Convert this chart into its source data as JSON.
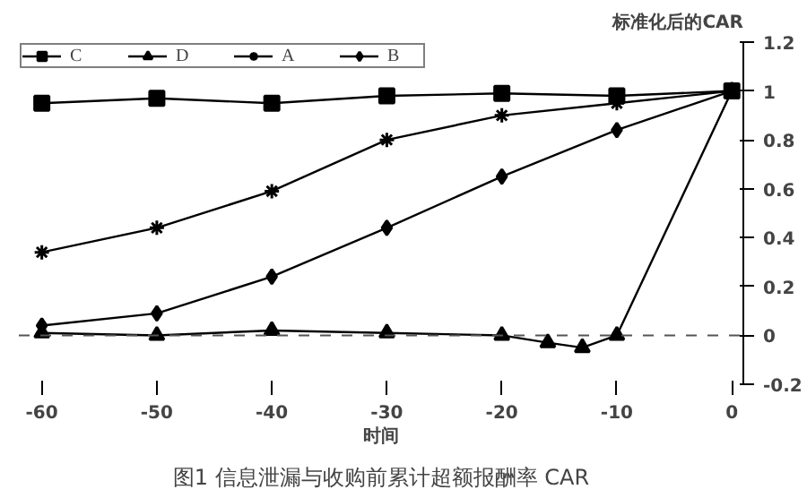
{
  "chart_data": {
    "type": "line",
    "title": "图1 信息泄漏与收购前累计超额报酬率 CAR",
    "xlabel": "时间",
    "ylabel": "标准化后的CAR",
    "x": [
      -60,
      -50,
      -40,
      -30,
      -20,
      -10,
      0
    ],
    "series": [
      {
        "name": "C",
        "color": "#000000",
        "marker": "square",
        "values": [
          0.95,
          0.97,
          0.95,
          0.98,
          0.99,
          0.98,
          1
        ]
      },
      {
        "name": "D",
        "color": "#000000",
        "marker": "triangle",
        "x": [
          -60,
          -50,
          -40,
          -30,
          -20,
          -16,
          -13,
          -10,
          0
        ],
        "values": [
          0.01,
          0.0,
          0.02,
          0.01,
          0.0,
          -0.03,
          -0.05,
          0.0,
          1
        ]
      },
      {
        "name": "A",
        "color": "#000000",
        "marker": "cross",
        "values": [
          0.34,
          0.44,
          0.59,
          0.8,
          0.9,
          0.95,
          1
        ]
      },
      {
        "name": "B",
        "color": "#000000",
        "marker": "diamond",
        "values": [
          0.04,
          0.09,
          0.24,
          0.44,
          0.65,
          0.84,
          1
        ]
      }
    ],
    "xlim": [
      -62,
      1
    ],
    "ylim": [
      -0.2,
      1.2
    ],
    "xticks": [
      -60,
      -50,
      -40,
      -30,
      -20,
      -10,
      0
    ],
    "yticks": [
      -0.2,
      0,
      0.2,
      0.4,
      0.6,
      0.8,
      1,
      1.2
    ],
    "ref_lines": [
      {
        "axis": "y",
        "value": 0,
        "line_style": "dashed",
        "color": "#555555"
      }
    ],
    "grid": false,
    "legend": "top left",
    "line_style": "solid"
  }
}
